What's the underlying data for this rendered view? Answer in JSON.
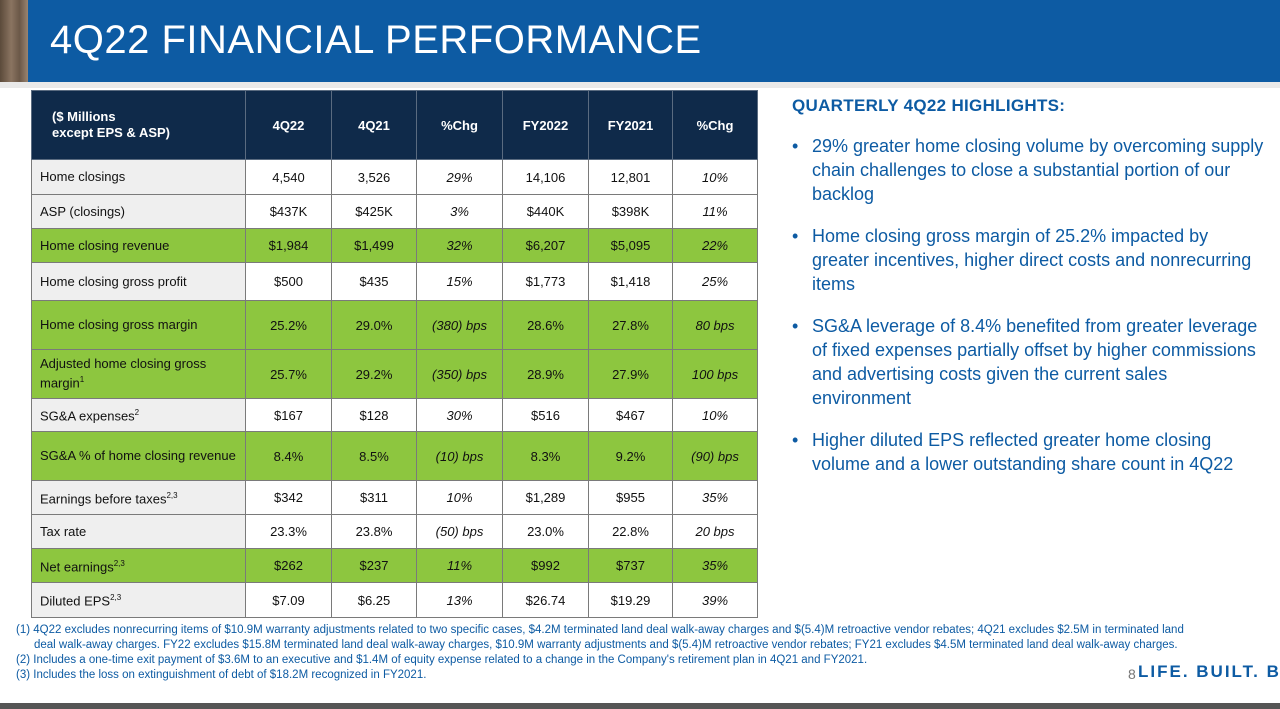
{
  "title": "4Q22 FINANCIAL PERFORMANCE",
  "table": {
    "corner_line1": "($ Millions",
    "corner_line2": "except EPS & ASP)",
    "columns": [
      "4Q22",
      "4Q21",
      "%Chg",
      "FY2022",
      "FY2021",
      "%Chg"
    ],
    "rows": [
      {
        "label": "Home closings",
        "sup": "",
        "values": [
          "4,540",
          "3,526",
          "29%",
          "14,106",
          "12,801",
          "10%"
        ]
      },
      {
        "label": "ASP (closings)",
        "sup": "",
        "values": [
          "$437K",
          "$425K",
          "3%",
          "$440K",
          "$398K",
          "11%"
        ]
      },
      {
        "label": "Home closing revenue",
        "sup": "",
        "values": [
          "$1,984",
          "$1,499",
          "32%",
          "$6,207",
          "$5,095",
          "22%"
        ]
      },
      {
        "label": "Home closing gross profit",
        "sup": "",
        "values": [
          "$500",
          "$435",
          "15%",
          "$1,773",
          "$1,418",
          "25%"
        ]
      },
      {
        "label": "Home closing gross margin",
        "sup": "",
        "values": [
          "25.2%",
          "29.0%",
          "(380) bps",
          "28.6%",
          "27.8%",
          "80 bps"
        ]
      },
      {
        "label": "Adjusted home closing gross margin",
        "sup": "1",
        "values": [
          "25.7%",
          "29.2%",
          "(350) bps",
          "28.9%",
          "27.9%",
          "100 bps"
        ]
      },
      {
        "label": "SG&A expenses",
        "sup": "2",
        "values": [
          "$167",
          "$128",
          "30%",
          "$516",
          "$467",
          "10%"
        ]
      },
      {
        "label": "SG&A % of home closing revenue",
        "sup": "",
        "values": [
          "8.4%",
          "8.5%",
          "(10) bps",
          "8.3%",
          "9.2%",
          "(90) bps"
        ]
      },
      {
        "label": "Earnings before taxes",
        "sup": "2,3",
        "values": [
          "$342",
          "$311",
          "10%",
          "$1,289",
          "$955",
          "35%"
        ]
      },
      {
        "label": "Tax rate",
        "sup": "",
        "values": [
          "23.3%",
          "23.8%",
          "(50) bps",
          "23.0%",
          "22.8%",
          "20 bps"
        ]
      },
      {
        "label": "Net earnings",
        "sup": "2,3",
        "values": [
          "$262",
          "$237",
          "11%",
          "$992",
          "$737",
          "35%"
        ]
      },
      {
        "label": "Diluted EPS",
        "sup": "2,3",
        "values": [
          "$7.09",
          "$6.25",
          "13%",
          "$26.74",
          "$19.29",
          "39%"
        ]
      }
    ]
  },
  "highlights": {
    "title": "QUARTERLY 4Q22 HIGHLIGHTS:",
    "items": [
      "29% greater home closing volume by overcoming supply chain challenges to close a substantial portion of our backlog",
      "Home closing gross margin of 25.2% impacted by greater incentives, higher direct costs and nonrecurring items",
      "SG&A leverage of 8.4% benefited from greater leverage of fixed expenses partially offset by higher commissions and advertising costs given the current sales environment",
      "Higher diluted EPS reflected greater home closing volume and a lower outstanding share count in 4Q22"
    ]
  },
  "footnotes": [
    "(1) 4Q22 excludes nonrecurring items of $10.9M warranty adjustments related to two specific cases, $4.2M terminated land deal walk-away charges and $(5.4)M retroactive vendor rebates; 4Q21 excludes $2.5M in terminated land",
    "deal walk-away charges. FY22 excludes $15.8M terminated land deal walk-away charges, $10.9M warranty adjustments and $(5.4)M retroactive vendor rebates; FY21 excludes $4.5M terminated land deal walk-away charges.",
    "(2) Includes a one-time exit payment of $3.6M to an executive and $1.4M of equity expense related to a change in the Company's retirement plan in 4Q21 and FY2021.",
    "(3) Includes the loss on extinguishment of debt of $18.2M recognized in FY2021."
  ],
  "page_number": "8",
  "tagline": "LIFE. BUILT. BETTER.",
  "colors": {
    "header": "#0d5ba3",
    "table_header": "#0f2a4a",
    "green_row": "#8dc63f"
  }
}
